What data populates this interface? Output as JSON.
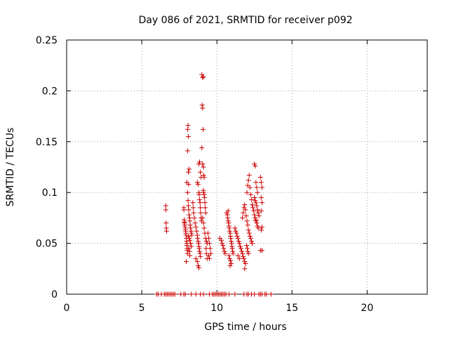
{
  "chart_data": {
    "type": "scatter",
    "title": "Day 086 of 2021, SRMTID for receiver p092",
    "xlabel": "GPS time / hours",
    "ylabel": "SRMTID / TECUs",
    "xlim": [
      0,
      24
    ],
    "ylim": [
      0,
      0.25
    ],
    "x_ticks": [
      0,
      5,
      10,
      15,
      20
    ],
    "x_tick_labels": [
      "0",
      "5",
      "10",
      "15",
      "20"
    ],
    "y_ticks": [
      0,
      0.05,
      0.1,
      0.15,
      0.2,
      0.25
    ],
    "y_tick_labels": [
      "0",
      "0.05",
      "0.1",
      "0.15",
      "0.2",
      "0.25"
    ],
    "grid": true,
    "marker": "+",
    "series_color": "#cc0000",
    "series": [
      {
        "name": "SRMTID",
        "points": [
          [
            6.0,
            0
          ],
          [
            6.1,
            0
          ],
          [
            6.3,
            0
          ],
          [
            6.5,
            0
          ],
          [
            6.6,
            0
          ],
          [
            6.7,
            0
          ],
          [
            6.8,
            0
          ],
          [
            6.9,
            0
          ],
          [
            7.0,
            0
          ],
          [
            7.1,
            0
          ],
          [
            7.2,
            0
          ],
          [
            7.6,
            0
          ],
          [
            7.8,
            0
          ],
          [
            7.9,
            0
          ],
          [
            8.3,
            0
          ],
          [
            8.6,
            0
          ],
          [
            8.9,
            0
          ],
          [
            9.1,
            0
          ],
          [
            9.5,
            0
          ],
          [
            9.7,
            0
          ],
          [
            9.8,
            0
          ],
          [
            9.9,
            0
          ],
          [
            10.0,
            0
          ],
          [
            10.1,
            0
          ],
          [
            10.2,
            0
          ],
          [
            10.3,
            0
          ],
          [
            10.4,
            0
          ],
          [
            10.5,
            0
          ],
          [
            10.6,
            0
          ],
          [
            10.8,
            0
          ],
          [
            11.2,
            0
          ],
          [
            11.8,
            0
          ],
          [
            12.0,
            0
          ],
          [
            12.1,
            0
          ],
          [
            12.3,
            0
          ],
          [
            12.5,
            0
          ],
          [
            12.8,
            0
          ],
          [
            12.9,
            0
          ],
          [
            13.0,
            0
          ],
          [
            13.2,
            0
          ],
          [
            13.3,
            0
          ],
          [
            13.6,
            0
          ],
          [
            6.6,
            0.087
          ],
          [
            6.6,
            0.083
          ],
          [
            6.62,
            0.07
          ],
          [
            6.63,
            0.065
          ],
          [
            6.65,
            0.062
          ],
          [
            7.8,
            0.085
          ],
          [
            7.8,
            0.083
          ],
          [
            7.82,
            0.073
          ],
          [
            7.84,
            0.071
          ],
          [
            7.85,
            0.07
          ],
          [
            7.86,
            0.068
          ],
          [
            7.88,
            0.066
          ],
          [
            7.9,
            0.064
          ],
          [
            7.92,
            0.062
          ],
          [
            7.93,
            0.06
          ],
          [
            7.95,
            0.058
          ],
          [
            7.97,
            0.055
          ],
          [
            7.98,
            0.052
          ],
          [
            8.0,
            0.05
          ],
          [
            8.0,
            0.048
          ],
          [
            8.02,
            0.045
          ],
          [
            8.03,
            0.043
          ],
          [
            8.05,
            0.04
          ],
          [
            7.96,
            0.032
          ],
          [
            8.05,
            0.1
          ],
          [
            8.08,
            0.092
          ],
          [
            8.1,
            0.087
          ],
          [
            8.12,
            0.083
          ],
          [
            8.15,
            0.078
          ],
          [
            8.18,
            0.075
          ],
          [
            8.2,
            0.072
          ],
          [
            8.22,
            0.068
          ],
          [
            8.25,
            0.065
          ],
          [
            8.28,
            0.062
          ],
          [
            8.3,
            0.06
          ],
          [
            8.32,
            0.058
          ],
          [
            8.1,
            0.057
          ],
          [
            8.15,
            0.055
          ],
          [
            8.2,
            0.053
          ],
          [
            8.25,
            0.05
          ],
          [
            8.3,
            0.047
          ],
          [
            8.12,
            0.045
          ],
          [
            8.18,
            0.042
          ],
          [
            8.2,
            0.038
          ],
          [
            8.0,
            0.11
          ],
          [
            8.1,
            0.12
          ],
          [
            8.15,
            0.123
          ],
          [
            8.05,
            0.141
          ],
          [
            8.1,
            0.155
          ],
          [
            8.05,
            0.162
          ],
          [
            8.08,
            0.166
          ],
          [
            8.12,
            0.108
          ],
          [
            8.4,
            0.09
          ],
          [
            8.42,
            0.085
          ],
          [
            8.45,
            0.08
          ],
          [
            8.5,
            0.075
          ],
          [
            8.55,
            0.07
          ],
          [
            8.6,
            0.066
          ],
          [
            8.65,
            0.062
          ],
          [
            8.7,
            0.058
          ],
          [
            8.72,
            0.055
          ],
          [
            8.75,
            0.052
          ],
          [
            8.78,
            0.05
          ],
          [
            8.8,
            0.047
          ],
          [
            8.82,
            0.045
          ],
          [
            8.85,
            0.042
          ],
          [
            8.88,
            0.04
          ],
          [
            8.9,
            0.037
          ],
          [
            8.6,
            0.035
          ],
          [
            8.7,
            0.032
          ],
          [
            8.75,
            0.028
          ],
          [
            8.8,
            0.026
          ],
          [
            8.7,
            0.11
          ],
          [
            8.75,
            0.108
          ],
          [
            8.8,
            0.1
          ],
          [
            8.82,
            0.098
          ],
          [
            8.85,
            0.093
          ],
          [
            8.88,
            0.09
          ],
          [
            8.9,
            0.085
          ],
          [
            8.92,
            0.08
          ],
          [
            8.95,
            0.075
          ],
          [
            8.97,
            0.072
          ],
          [
            8.8,
            0.128
          ],
          [
            8.85,
            0.13
          ],
          [
            8.9,
            0.12
          ],
          [
            8.95,
            0.115
          ],
          [
            9.0,
            0.216
          ],
          [
            9.05,
            0.213
          ],
          [
            9.1,
            0.214
          ],
          [
            9.02,
            0.186
          ],
          [
            9.05,
            0.183
          ],
          [
            9.08,
            0.162
          ],
          [
            9.0,
            0.144
          ],
          [
            9.05,
            0.128
          ],
          [
            9.1,
            0.125
          ],
          [
            9.12,
            0.117
          ],
          [
            9.15,
            0.115
          ],
          [
            9.1,
            0.102
          ],
          [
            9.12,
            0.1
          ],
          [
            9.15,
            0.098
          ],
          [
            9.18,
            0.095
          ],
          [
            9.2,
            0.09
          ],
          [
            9.22,
            0.085
          ],
          [
            9.25,
            0.08
          ],
          [
            9.05,
            0.075
          ],
          [
            9.1,
            0.07
          ],
          [
            9.15,
            0.065
          ],
          [
            9.2,
            0.06
          ],
          [
            9.25,
            0.055
          ],
          [
            9.3,
            0.052
          ],
          [
            9.35,
            0.05
          ],
          [
            9.28,
            0.045
          ],
          [
            9.3,
            0.04
          ],
          [
            9.35,
            0.035
          ],
          [
            9.4,
            0.06
          ],
          [
            9.45,
            0.055
          ],
          [
            9.5,
            0.05
          ],
          [
            9.55,
            0.045
          ],
          [
            9.6,
            0.04
          ],
          [
            9.45,
            0.038
          ],
          [
            9.5,
            0.035
          ],
          [
            10.2,
            0.055
          ],
          [
            10.3,
            0.053
          ],
          [
            10.35,
            0.05
          ],
          [
            10.4,
            0.048
          ],
          [
            10.45,
            0.045
          ],
          [
            10.5,
            0.042
          ],
          [
            10.55,
            0.04
          ],
          [
            10.65,
            0.08
          ],
          [
            10.7,
            0.078
          ],
          [
            10.72,
            0.075
          ],
          [
            10.75,
            0.072
          ],
          [
            10.78,
            0.07
          ],
          [
            10.8,
            0.067
          ],
          [
            10.82,
            0.065
          ],
          [
            10.85,
            0.062
          ],
          [
            10.88,
            0.06
          ],
          [
            10.9,
            0.057
          ],
          [
            10.92,
            0.055
          ],
          [
            10.95,
            0.052
          ],
          [
            10.98,
            0.05
          ],
          [
            11.0,
            0.047
          ],
          [
            11.02,
            0.045
          ],
          [
            11.05,
            0.042
          ],
          [
            11.08,
            0.04
          ],
          [
            10.8,
            0.038
          ],
          [
            10.85,
            0.035
          ],
          [
            10.9,
            0.033
          ],
          [
            10.95,
            0.03
          ],
          [
            10.88,
            0.028
          ],
          [
            10.75,
            0.082
          ],
          [
            11.2,
            0.065
          ],
          [
            11.25,
            0.062
          ],
          [
            11.3,
            0.06
          ],
          [
            11.35,
            0.057
          ],
          [
            11.4,
            0.055
          ],
          [
            11.45,
            0.052
          ],
          [
            11.5,
            0.05
          ],
          [
            11.55,
            0.047
          ],
          [
            11.6,
            0.045
          ],
          [
            11.65,
            0.042
          ],
          [
            11.7,
            0.04
          ],
          [
            11.75,
            0.037
          ],
          [
            11.8,
            0.035
          ],
          [
            11.85,
            0.032
          ],
          [
            11.9,
            0.03
          ],
          [
            11.4,
            0.038
          ],
          [
            11.5,
            0.035
          ],
          [
            11.85,
            0.025
          ],
          [
            11.7,
            0.075
          ],
          [
            11.75,
            0.08
          ],
          [
            11.8,
            0.085
          ],
          [
            11.85,
            0.088
          ],
          [
            11.9,
            0.083
          ],
          [
            11.95,
            0.077
          ],
          [
            12.0,
            0.072
          ],
          [
            12.05,
            0.068
          ],
          [
            12.1,
            0.063
          ],
          [
            12.15,
            0.06
          ],
          [
            12.2,
            0.057
          ],
          [
            12.25,
            0.055
          ],
          [
            12.3,
            0.052
          ],
          [
            12.35,
            0.05
          ],
          [
            11.98,
            0.048
          ],
          [
            12.02,
            0.045
          ],
          [
            12.05,
            0.042
          ],
          [
            12.1,
            0.04
          ],
          [
            12.0,
            0.1
          ],
          [
            12.05,
            0.107
          ],
          [
            12.1,
            0.112
          ],
          [
            12.15,
            0.117
          ],
          [
            12.2,
            0.105
          ],
          [
            12.25,
            0.098
          ],
          [
            12.3,
            0.093
          ],
          [
            12.35,
            0.088
          ],
          [
            12.4,
            0.085
          ],
          [
            12.45,
            0.082
          ],
          [
            12.5,
            0.078
          ],
          [
            12.55,
            0.075
          ],
          [
            12.6,
            0.072
          ],
          [
            12.5,
            0.128
          ],
          [
            12.55,
            0.126
          ],
          [
            12.6,
            0.11
          ],
          [
            12.65,
            0.105
          ],
          [
            12.7,
            0.1
          ],
          [
            12.5,
            0.095
          ],
          [
            12.55,
            0.092
          ],
          [
            12.6,
            0.09
          ],
          [
            12.65,
            0.087
          ],
          [
            12.7,
            0.083
          ],
          [
            12.75,
            0.08
          ],
          [
            12.8,
            0.077
          ],
          [
            12.6,
            0.073
          ],
          [
            12.65,
            0.07
          ],
          [
            12.7,
            0.067
          ],
          [
            12.75,
            0.065
          ],
          [
            12.9,
            0.115
          ],
          [
            12.95,
            0.11
          ],
          [
            13.0,
            0.105
          ],
          [
            12.95,
            0.095
          ],
          [
            13.0,
            0.09
          ],
          [
            12.95,
            0.082
          ],
          [
            13.0,
            0.066
          ],
          [
            12.95,
            0.063
          ],
          [
            12.9,
            0.043
          ],
          [
            13.0,
            0.043
          ]
        ]
      }
    ]
  }
}
